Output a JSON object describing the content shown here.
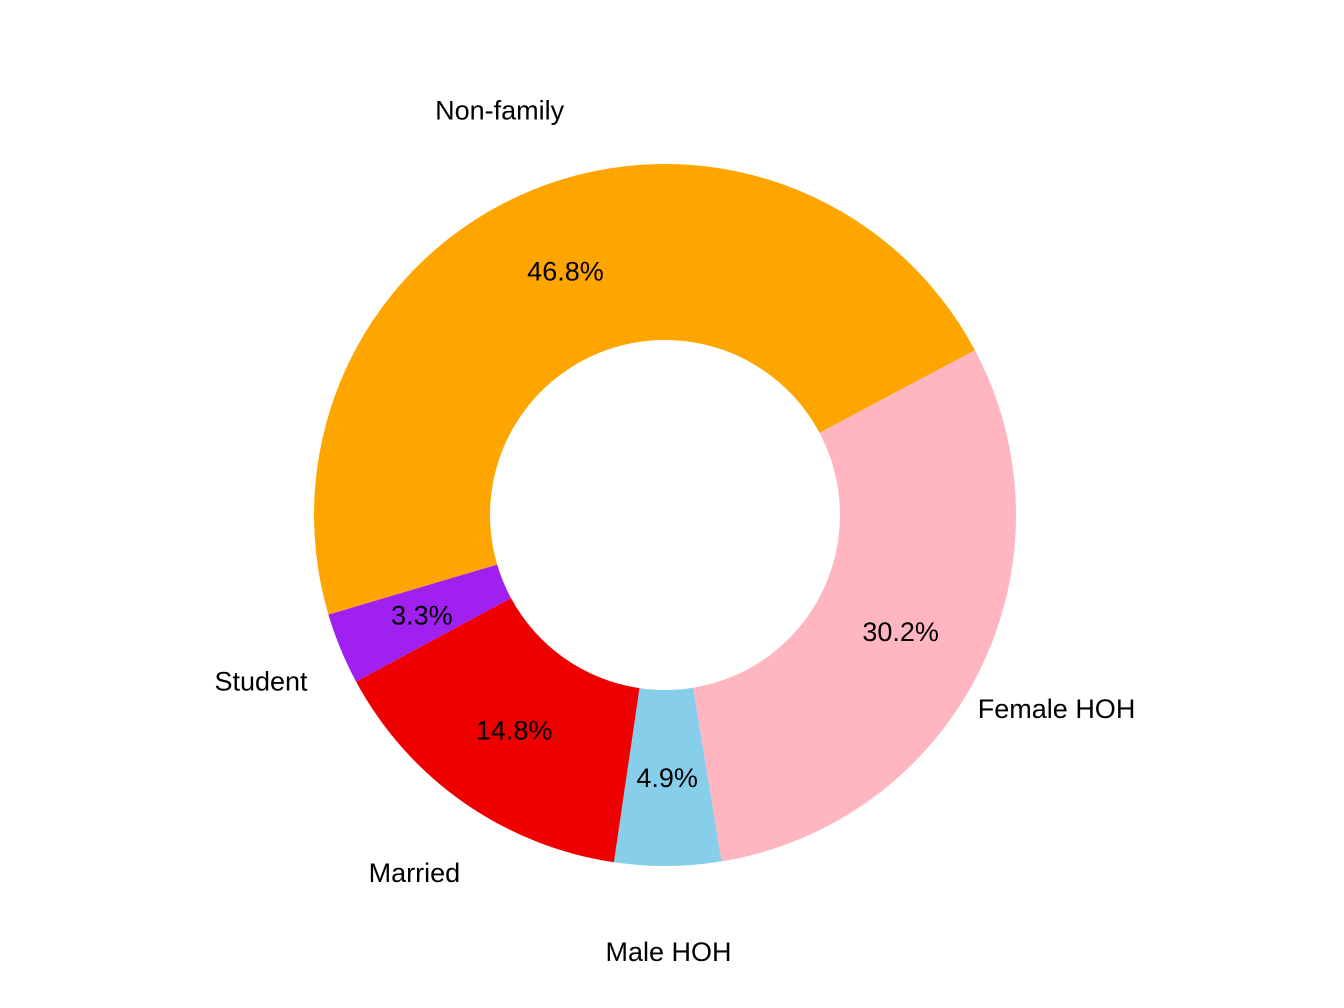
{
  "chart_data": {
    "type": "pie",
    "style": "donut",
    "title": "",
    "slices": [
      {
        "label": "Non-family",
        "value": 46.8,
        "value_label": "46.8%",
        "color": "#FFA500"
      },
      {
        "label": "Student",
        "value": 3.3,
        "value_label": "3.3%",
        "color": "#A020F0"
      },
      {
        "label": "Married",
        "value": 14.8,
        "value_label": "14.8%",
        "color": "#EE0000"
      },
      {
        "label": "Male HOH",
        "value": 4.9,
        "value_label": "4.9%",
        "color": "#87CEEB"
      },
      {
        "label": "Female HOH",
        "value": 30.2,
        "value_label": "30.2%",
        "color": "#FFB6C1"
      }
    ]
  }
}
